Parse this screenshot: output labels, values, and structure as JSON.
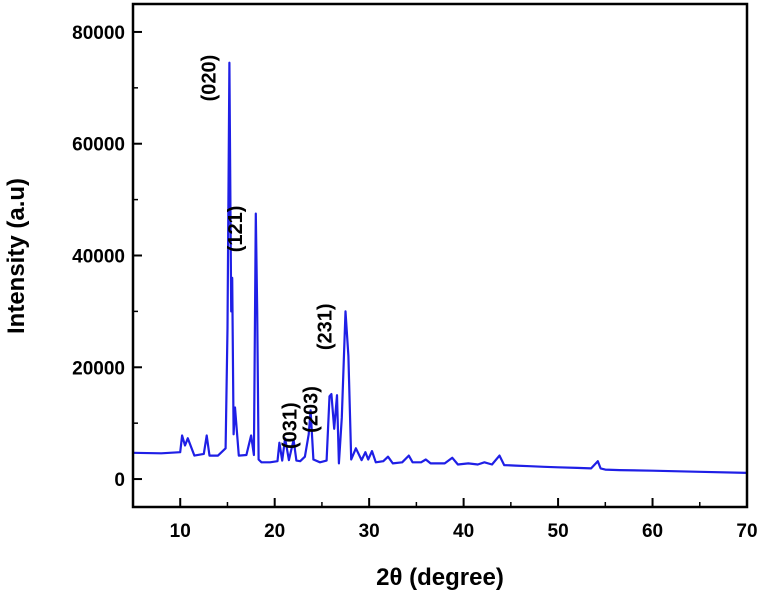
{
  "chart_data": {
    "type": "line",
    "title": "",
    "xlabel": "2θ (degree)",
    "ylabel": "Intensity (a.u)",
    "xlim": [
      5,
      70
    ],
    "ylim": [
      -5000,
      85000
    ],
    "xticks": [
      10,
      20,
      30,
      40,
      50,
      60,
      70
    ],
    "yticks": [
      0,
      20000,
      40000,
      60000,
      80000
    ],
    "grid": false,
    "legend": "none",
    "line_color": "#1f1fe6",
    "series": [
      {
        "x": [
          5,
          8,
          10,
          10.2,
          10.5,
          10.8,
          11.5,
          12.5,
          12.8,
          13.1,
          14,
          14.8,
          15.0,
          15.2,
          15.4,
          15.5,
          15.65,
          15.8,
          16.2,
          17.0,
          17.5,
          17.8,
          18.0,
          18.15,
          18.3,
          18.6,
          19.5,
          20.3,
          20.5,
          20.8,
          21.1,
          21.5,
          22.0,
          22.3,
          22.7,
          23.2,
          23.6,
          23.8,
          24.1,
          24.8,
          25.5,
          25.8,
          26.0,
          26.3,
          26.6,
          26.8,
          27.1,
          27.5,
          27.8,
          28.1,
          28.6,
          29.2,
          29.6,
          29.9,
          30.3,
          30.7,
          31.5,
          32.0,
          32.5,
          33.5,
          34.2,
          34.6,
          35.5,
          36.0,
          36.5,
          38.0,
          38.8,
          39.4,
          40.5,
          41.5,
          42.2,
          43.0,
          43.8,
          44.3,
          45.5,
          47.0,
          48.5,
          50.0,
          52.0,
          53.5,
          54.2,
          54.5,
          55.0,
          56.5,
          60.0,
          65.0,
          70.0
        ],
        "values": [
          4700,
          4600,
          4800,
          7800,
          6000,
          7300,
          4200,
          4500,
          7800,
          4200,
          4200,
          5500,
          27000,
          74500,
          30000,
          36000,
          8000,
          12800,
          4200,
          4300,
          7800,
          4300,
          47500,
          30000,
          3500,
          3000,
          3000,
          3200,
          6500,
          3300,
          7300,
          3400,
          7000,
          3300,
          3200,
          4000,
          8000,
          12300,
          3500,
          3000,
          3300,
          14800,
          15200,
          9000,
          15000,
          2800,
          11000,
          30000,
          22000,
          3500,
          5500,
          3400,
          4800,
          3500,
          5000,
          3000,
          3200,
          4000,
          2800,
          3000,
          4200,
          3000,
          3000,
          3500,
          2800,
          2800,
          3800,
          2600,
          2800,
          2600,
          3000,
          2600,
          4200,
          2500,
          2400,
          2300,
          2200,
          2100,
          2000,
          1900,
          3200,
          1900,
          1700,
          1600,
          1500,
          1300,
          1100
        ]
      }
    ],
    "annotations": [
      {
        "text": "(020)",
        "x": 15.2,
        "y": 74500
      },
      {
        "text": "(121)",
        "x": 18.0,
        "y": 47500
      },
      {
        "text": "(031)",
        "x": 23.8,
        "y": 12300
      },
      {
        "text": "(203)",
        "x": 26.0,
        "y": 15200
      },
      {
        "text": "(231)",
        "x": 27.5,
        "y": 30000
      }
    ]
  }
}
